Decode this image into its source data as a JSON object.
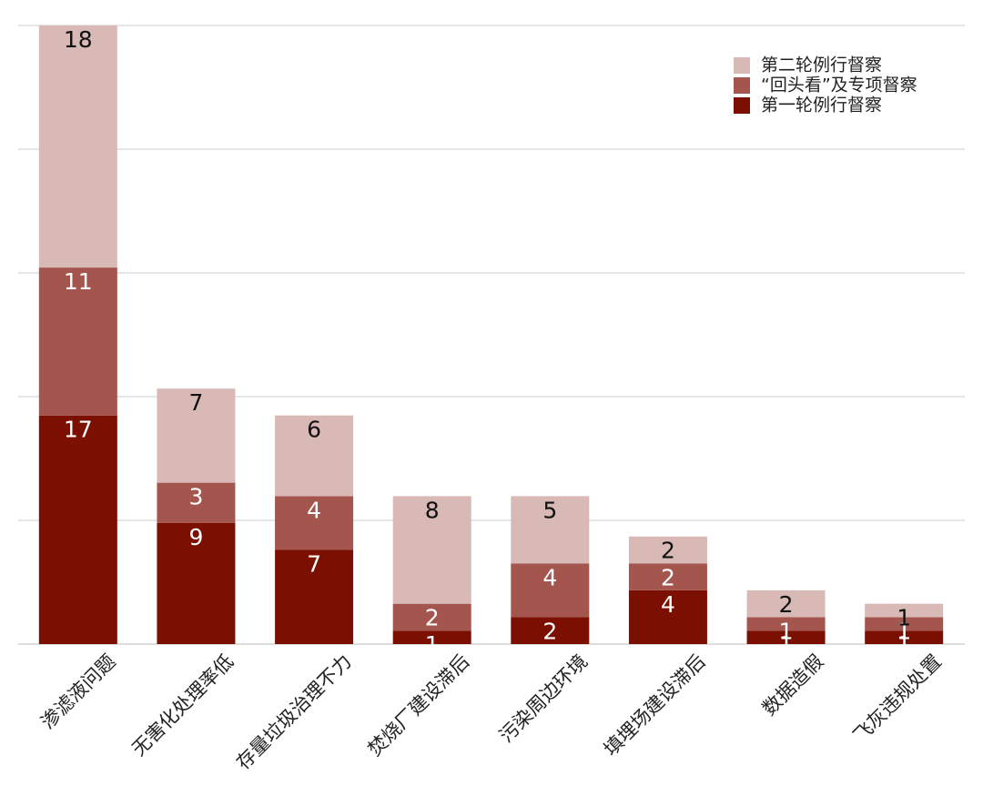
{
  "chart_data": {
    "type": "stacked_bar",
    "categories": [
      "渗滤液问题",
      "无害化处理率低",
      "存量垃圾治理不力",
      "焚烧厂建设滞后",
      "污染周边环境",
      "填埋场建设滞后",
      "数据造假",
      "飞灰违规处置"
    ],
    "series": [
      {
        "name": "第一轮例行督察",
        "color": "#7b1002",
        "values": [
          17,
          9,
          7,
          1,
          2,
          4,
          1,
          1
        ]
      },
      {
        "name": "“回头看”及专项督察",
        "color": "#a4554e",
        "values": [
          11,
          3,
          4,
          2,
          4,
          2,
          1,
          1
        ]
      },
      {
        "name": "第二轮例行督察",
        "color": "#d9b9b6",
        "values": [
          18,
          7,
          6,
          8,
          5,
          2,
          2,
          1
        ]
      }
    ],
    "ylim": [
      0,
      46
    ],
    "yticks": [
      0,
      9.2,
      18.4,
      27.6,
      36.8,
      46
    ],
    "grid": true,
    "legend": "top-right"
  }
}
